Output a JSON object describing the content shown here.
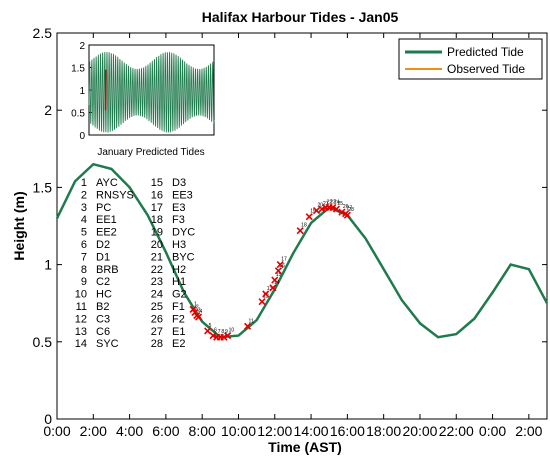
{
  "chart_data": [
    {
      "type": "line",
      "title": "Halifax Harbour Tides - Jan05",
      "xlabel": "Time (AST)",
      "ylabel": "Height (m)",
      "xlim": [
        0,
        27
      ],
      "ylim": [
        0,
        2.5
      ],
      "xticks": [
        "0:00",
        "2:00",
        "4:00",
        "6:00",
        "8:00",
        "10:00",
        "12:00",
        "14:00",
        "16:00",
        "18:00",
        "20:00",
        "22:00",
        "0:00",
        "2:00"
      ],
      "yticks": [
        "0",
        "0.5",
        "1",
        "1.5",
        "2",
        "2.5"
      ],
      "legend_position": "top-right",
      "series": [
        {
          "name": "Predicted Tide",
          "color": "#1f7a4d",
          "x": [
            0,
            1,
            2,
            3,
            4,
            5,
            6,
            7,
            8,
            9,
            10,
            11,
            12,
            13,
            14,
            15,
            16,
            17,
            18,
            19,
            20,
            21,
            22,
            23,
            24,
            25,
            26,
            27
          ],
          "y": [
            1.3,
            1.54,
            1.65,
            1.62,
            1.5,
            1.32,
            1.08,
            0.82,
            0.63,
            0.53,
            0.54,
            0.64,
            0.84,
            1.07,
            1.27,
            1.37,
            1.32,
            1.17,
            0.97,
            0.77,
            0.62,
            0.53,
            0.55,
            0.65,
            0.82,
            1.0,
            0.97,
            0.75
          ]
        },
        {
          "name": "Observed Tide",
          "color": "#e8901a",
          "x": [],
          "y": []
        }
      ],
      "markers": {
        "color": "#e00000",
        "labels": [
          "1",
          "2",
          "3",
          "4",
          "5",
          "6",
          "7",
          "8",
          "9",
          "10",
          "11",
          "12",
          "13",
          "14",
          "15",
          "16",
          "17",
          "18",
          "19",
          "20",
          "21",
          "22",
          "23",
          "24",
          "25",
          "26",
          "27",
          "28"
        ],
        "x": [
          7.5,
          7.6,
          7.7,
          7.8,
          8.3,
          8.6,
          8.8,
          9.0,
          9.2,
          9.4,
          10.5,
          11.3,
          11.5,
          11.9,
          12.0,
          12.2,
          12.3,
          13.4,
          13.9,
          14.3,
          14.6,
          14.8,
          15.0,
          15.2,
          15.4,
          15.7,
          15.9,
          16.0
        ],
        "y": [
          0.71,
          0.69,
          0.67,
          0.66,
          0.57,
          0.54,
          0.53,
          0.53,
          0.53,
          0.54,
          0.6,
          0.76,
          0.81,
          0.85,
          0.9,
          0.96,
          1.0,
          1.22,
          1.31,
          1.35,
          1.36,
          1.37,
          1.37,
          1.37,
          1.36,
          1.34,
          1.33,
          1.32
        ]
      },
      "station_legend": [
        {
          "num": "1",
          "code": "AYC"
        },
        {
          "num": "2",
          "code": "RNSYS"
        },
        {
          "num": "3",
          "code": "PC"
        },
        {
          "num": "4",
          "code": "EE1"
        },
        {
          "num": "5",
          "code": "EE2"
        },
        {
          "num": "6",
          "code": "D2"
        },
        {
          "num": "7",
          "code": "D1"
        },
        {
          "num": "8",
          "code": "BRB"
        },
        {
          "num": "9",
          "code": "C2"
        },
        {
          "num": "10",
          "code": "HC"
        },
        {
          "num": "11",
          "code": "B2"
        },
        {
          "num": "12",
          "code": "C3"
        },
        {
          "num": "13",
          "code": "C6"
        },
        {
          "num": "14",
          "code": "SYC"
        },
        {
          "num": "15",
          "code": "D3"
        },
        {
          "num": "16",
          "code": "EE3"
        },
        {
          "num": "17",
          "code": "E3"
        },
        {
          "num": "18",
          "code": "F3"
        },
        {
          "num": "19",
          "code": "DYC"
        },
        {
          "num": "20",
          "code": "H3"
        },
        {
          "num": "21",
          "code": "BYC"
        },
        {
          "num": "22",
          "code": "H2"
        },
        {
          "num": "23",
          "code": "H1"
        },
        {
          "num": "24",
          "code": "G2"
        },
        {
          "num": "25",
          "code": "F1"
        },
        {
          "num": "26",
          "code": "F2"
        },
        {
          "num": "27",
          "code": "E1"
        },
        {
          "num": "28",
          "code": "E2"
        }
      ]
    },
    {
      "type": "line",
      "title": "January Predicted Tides",
      "xlim": [
        1,
        31
      ],
      "ylim": [
        0,
        2
      ],
      "yticks": [
        "0",
        "0.5",
        "1",
        "1.5",
        "2"
      ],
      "series": [
        {
          "name": "",
          "color": "#1f7a4d",
          "cycles_per_day": 1.93,
          "mean": 0.95,
          "amplitude_min": 0.52,
          "amplitude_max": 0.9
        }
      ],
      "highlight": {
        "day": 5,
        "color": "#e00000"
      }
    }
  ]
}
